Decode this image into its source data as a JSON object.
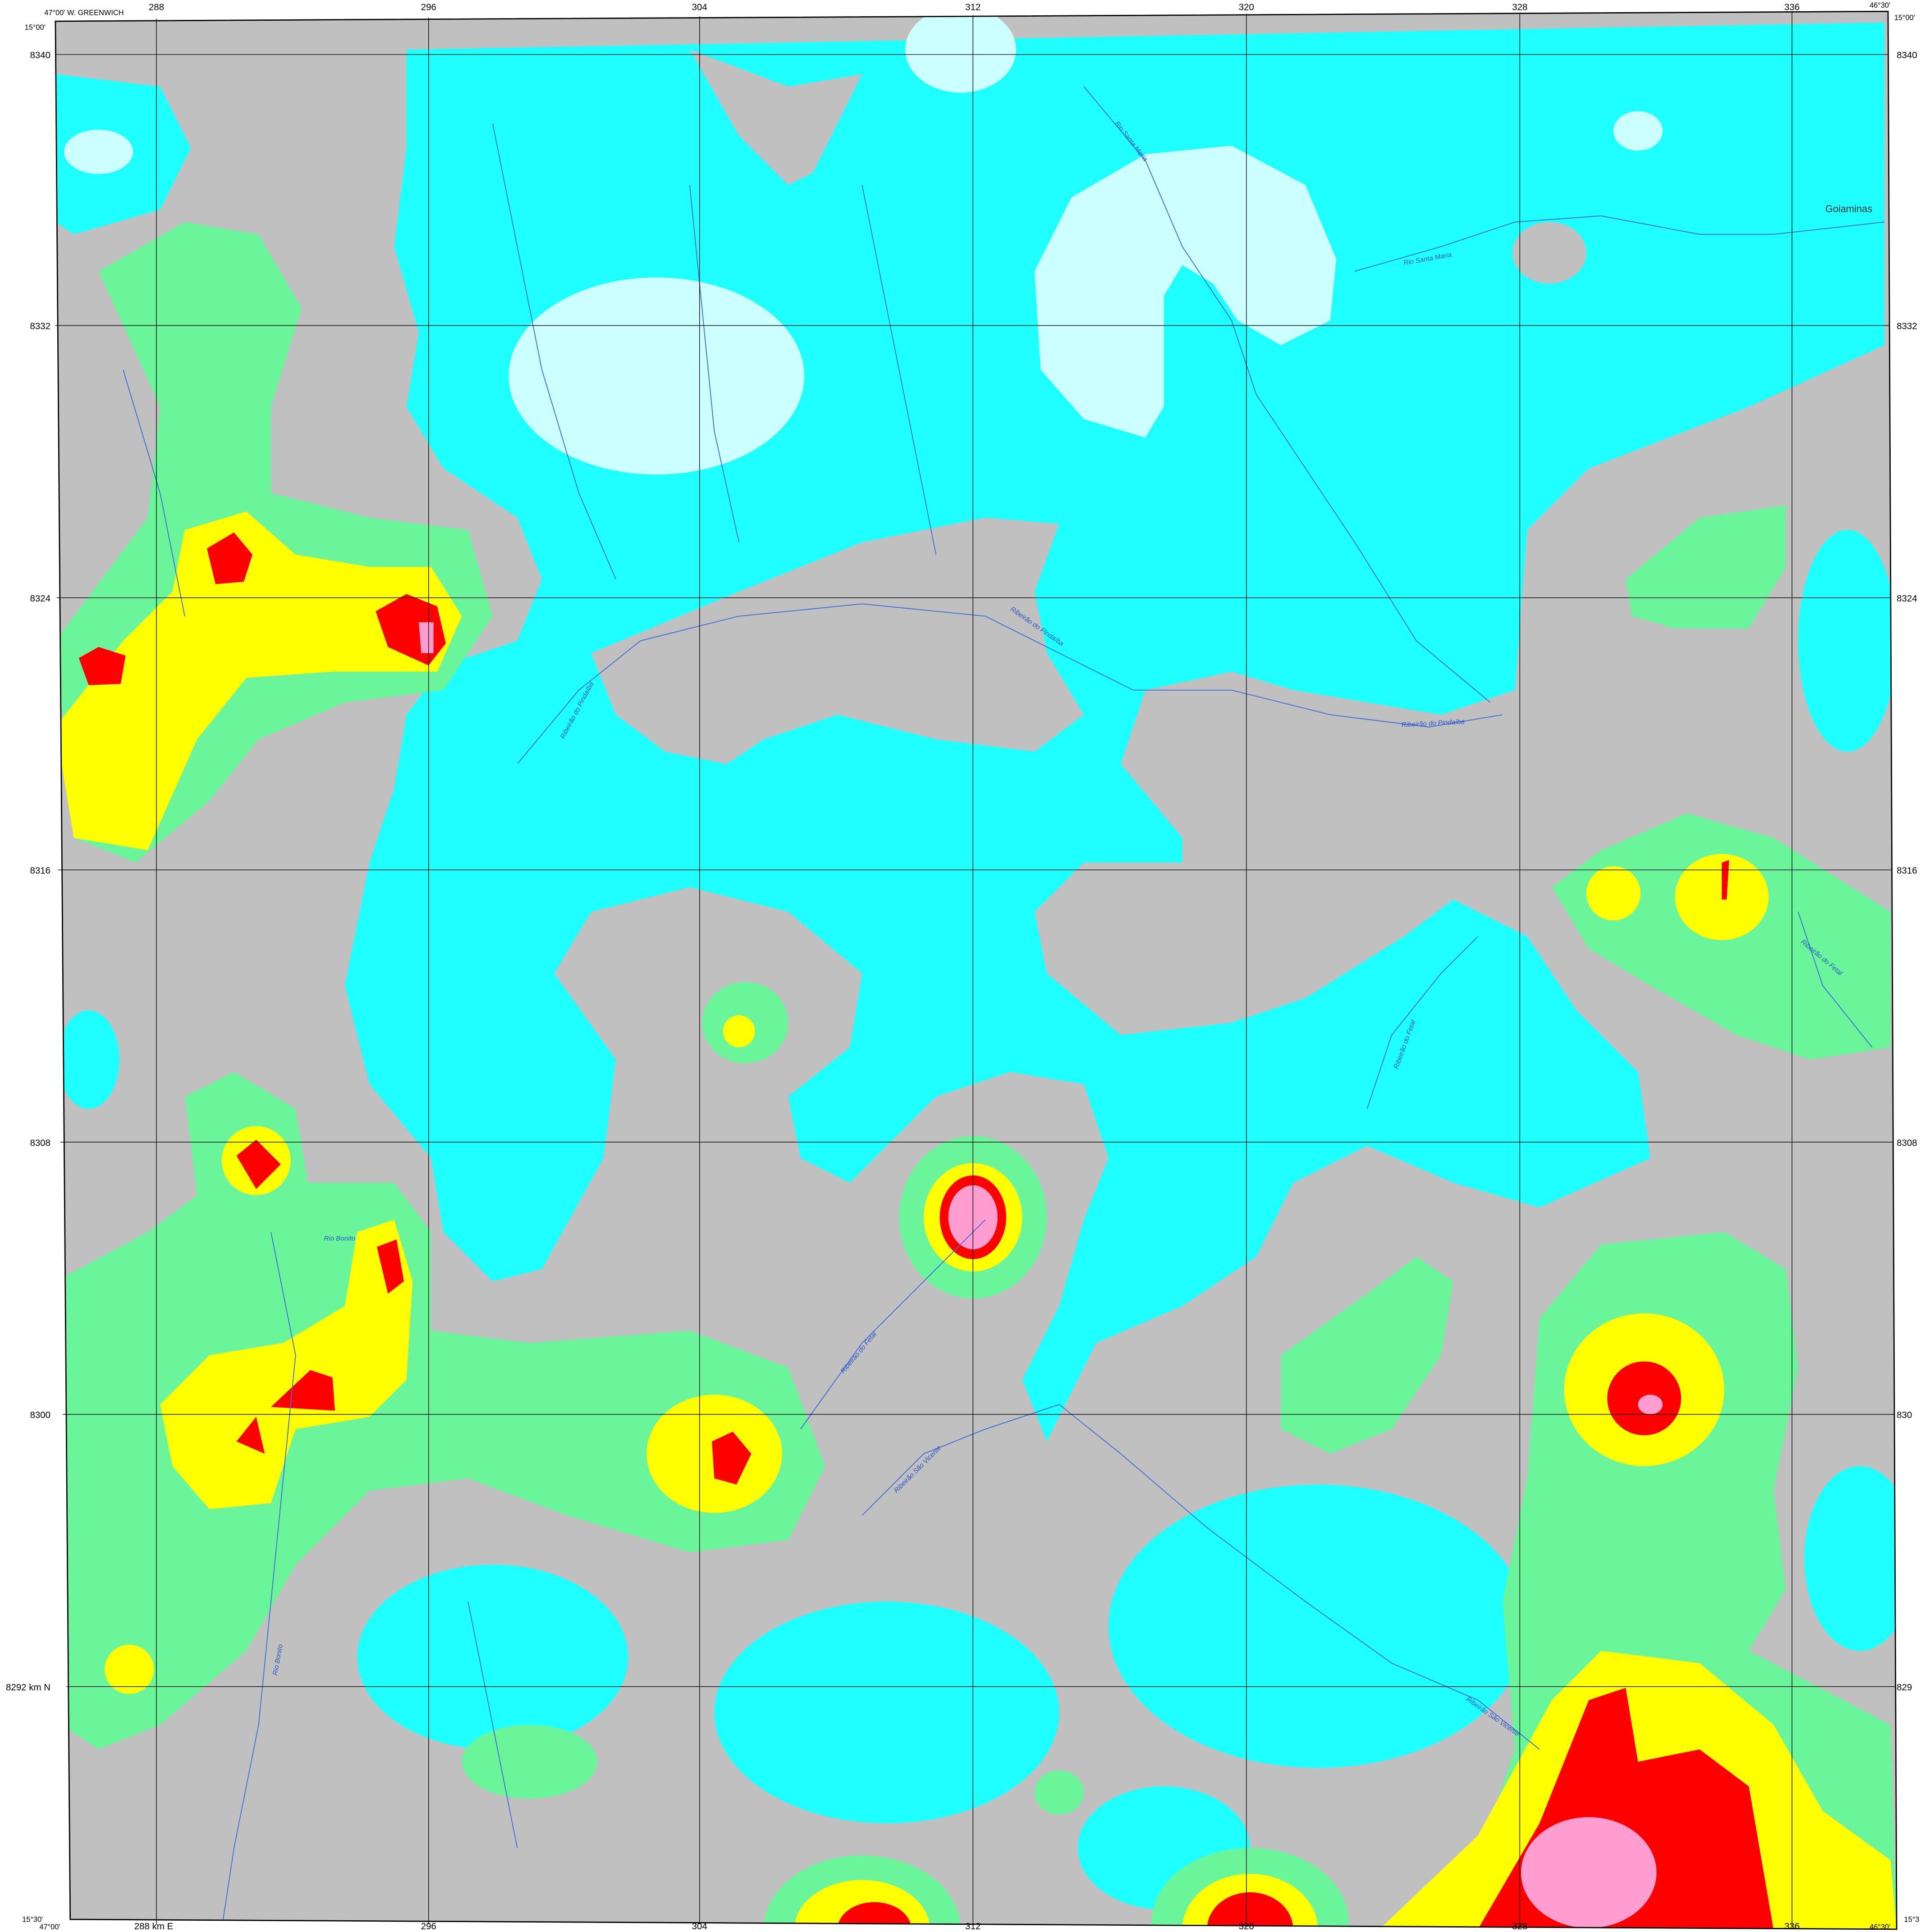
{
  "frame": {
    "top_left_lat": "15°00'",
    "top_left_lon": "47°00'  W. GREENWICH",
    "top_right_lon": "46°30'",
    "top_right_lat": "15°00'",
    "bottom_left_lat": "15°30'",
    "bottom_left_lon": "47°00'",
    "bottom_right_lon": "46°30'",
    "bottom_right_lat": "15°3"
  },
  "easting_top": [
    "288",
    "296",
    "304",
    "312",
    "320",
    "328",
    "336"
  ],
  "easting_bottom": [
    "288 km E",
    "296",
    "304",
    "312",
    "320",
    "328",
    "336"
  ],
  "northing_left": [
    "8340",
    "8332",
    "8324",
    "8316",
    "8308",
    "8300",
    "8292 km N"
  ],
  "northing_right": [
    "8340",
    "8332",
    "8324",
    "8316",
    "8308",
    "830",
    "829"
  ],
  "places": [
    "Goiaminas"
  ],
  "rivers": [
    "Rio Santa Maria",
    "Rio Santa Maria",
    "Ribeirão do Pindaíba",
    "Ribeirão do Pindaíba",
    "Ribeirão do Pindaíba",
    "Rio Bonito",
    "Rio Bonito",
    "Ribeirão do Fetal",
    "Ribeirão São Vicente",
    "Ribeirão do Fetal",
    "Ribeirão do Fetal",
    "Ribeirão São Vicente"
  ]
}
